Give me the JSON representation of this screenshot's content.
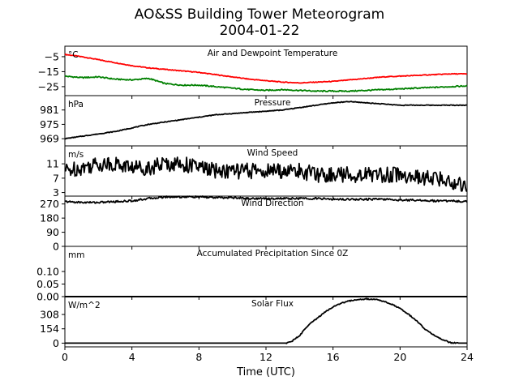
{
  "title": "AO&SS Building Tower Meteorogram",
  "subtitle": "2004-01-22",
  "xlabel": "Time (UTC)",
  "colors": {
    "temperature": "#ff0000",
    "dewpoint": "#008000",
    "line": "#000000"
  },
  "chart_data": [
    {
      "id": "temperature",
      "type": "line",
      "title": "Air and Dewpoint Temperature",
      "unit_label": "°C",
      "x": [
        0,
        1,
        2,
        3,
        4,
        5,
        6,
        7,
        8,
        9,
        10,
        11,
        12,
        13,
        14,
        15,
        16,
        17,
        18,
        19,
        20,
        21,
        22,
        23,
        24
      ],
      "series": [
        {
          "key": "temperature",
          "values": [
            -3.5,
            -5,
            -7,
            -9,
            -11,
            -12.5,
            -13.5,
            -14.5,
            -15.5,
            -17,
            -18.5,
            -20,
            -21,
            -22,
            -22.5,
            -22,
            -21.5,
            -20.5,
            -19.5,
            -18.5,
            -18,
            -17.5,
            -17,
            -16.5,
            -16.5
          ]
        },
        {
          "key": "dewpoint",
          "values": [
            -18,
            -19,
            -18.5,
            -20,
            -20.5,
            -19.5,
            -23,
            -24,
            -24,
            -25,
            -26,
            -27,
            -27.5,
            -27,
            -27.5,
            -28,
            -28,
            -28,
            -27.5,
            -27,
            -26.5,
            -26,
            -25.5,
            -25,
            -24.5
          ]
        }
      ],
      "yticks": [
        -5,
        -15,
        -25
      ],
      "ylim": [
        -31,
        2
      ]
    },
    {
      "id": "pressure",
      "type": "line",
      "title": "Pressure",
      "unit_label": "hPa",
      "x": [
        0,
        1,
        2,
        3,
        4,
        5,
        6,
        7,
        8,
        9,
        10,
        11,
        12,
        13,
        14,
        15,
        16,
        17,
        18,
        19,
        20,
        21,
        22,
        23,
        24
      ],
      "series": [
        {
          "key": "pressure",
          "values": [
            969,
            970,
            971,
            972,
            973.5,
            975,
            976,
            977,
            978,
            979,
            979.5,
            980,
            980.5,
            981,
            982,
            983,
            984,
            984.5,
            984,
            983.5,
            983,
            983,
            983,
            983,
            983
          ]
        }
      ],
      "yticks": [
        969,
        975,
        981
      ],
      "ylim": [
        966,
        987
      ]
    },
    {
      "id": "wind_speed",
      "type": "line",
      "title": "Wind Speed",
      "unit_label": "m/s",
      "x": [
        0,
        1,
        2,
        3,
        4,
        5,
        6,
        7,
        8,
        9,
        10,
        11,
        12,
        13,
        14,
        15,
        16,
        17,
        18,
        19,
        20,
        21,
        22,
        23,
        24
      ],
      "series": [
        {
          "key": "wind_speed",
          "values": [
            9,
            10,
            11,
            11,
            10,
            10,
            11,
            11,
            10,
            9,
            9,
            9,
            9,
            9,
            9,
            8,
            8,
            8,
            8,
            8,
            8,
            7,
            7,
            6,
            5
          ]
        }
      ],
      "yticks": [
        3,
        7,
        11
      ],
      "ylim": [
        2,
        16
      ]
    },
    {
      "id": "wind_direction",
      "type": "line",
      "title": "Wind Direction",
      "unit_label": "",
      "x": [
        0,
        1,
        2,
        3,
        4,
        5,
        6,
        7,
        8,
        9,
        10,
        11,
        12,
        13,
        14,
        15,
        16,
        17,
        18,
        19,
        20,
        21,
        22,
        23,
        24
      ],
      "series": [
        {
          "key": "wind_direction",
          "values": [
            285,
            280,
            280,
            285,
            290,
            305,
            315,
            315,
            315,
            310,
            310,
            305,
            305,
            305,
            305,
            305,
            300,
            300,
            300,
            300,
            295,
            295,
            290,
            290,
            285
          ]
        }
      ],
      "yticks": [
        0,
        90,
        180,
        270
      ],
      "ylim": [
        0,
        320
      ]
    },
    {
      "id": "precipitation",
      "type": "line",
      "title": "Accumulated Precipitation Since 0Z",
      "unit_label": "mm",
      "x": [
        0,
        24
      ],
      "series": [
        {
          "key": "precipitation",
          "values": [
            0,
            0
          ]
        }
      ],
      "yticks": [
        0.0,
        0.05,
        0.1
      ],
      "ytick_labels": [
        "0.00",
        "0.05",
        "0.10"
      ],
      "ylim": [
        0,
        0.2
      ]
    },
    {
      "id": "solar",
      "type": "line",
      "title": "Solar Flux",
      "unit_label": "W/m^2",
      "x": [
        0,
        13.2,
        13.5,
        14,
        14.5,
        15,
        15.5,
        16,
        16.5,
        17,
        17.5,
        18,
        18.5,
        19,
        19.5,
        20,
        20.5,
        21,
        21.5,
        22,
        22.5,
        23,
        23.5,
        24
      ],
      "series": [
        {
          "key": "solar",
          "values": [
            0,
            0,
            15,
            80,
            190,
            260,
            330,
            390,
            430,
            455,
            470,
            475,
            470,
            450,
            420,
            370,
            310,
            240,
            150,
            90,
            40,
            5,
            0,
            0
          ]
        }
      ],
      "yticks": [
        0,
        154,
        308
      ],
      "ylim": [
        -40,
        500
      ]
    }
  ],
  "xaxis": {
    "ticks": [
      0,
      4,
      8,
      12,
      16,
      20,
      24
    ],
    "xlim": [
      0,
      24
    ]
  }
}
